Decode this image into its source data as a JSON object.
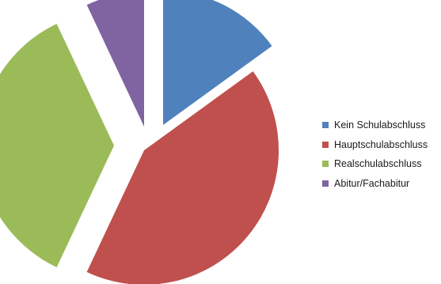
{
  "chart_data": {
    "type": "pie",
    "exploded": true,
    "start_angle_deg_clockwise_from_top": 0,
    "slices": [
      {
        "label": "Kein Schulabschluss",
        "value": 15,
        "color": "#4f81bd"
      },
      {
        "label": "Hauptschulabschluss",
        "value": 42,
        "color": "#c0504d"
      },
      {
        "label": "Realschulabschluss",
        "value": 36,
        "color": "#9bbb59"
      },
      {
        "label": "Abitur/Fachabitur",
        "value": 7,
        "color": "#8064a2"
      }
    ],
    "title": "",
    "legend_position": "right"
  }
}
